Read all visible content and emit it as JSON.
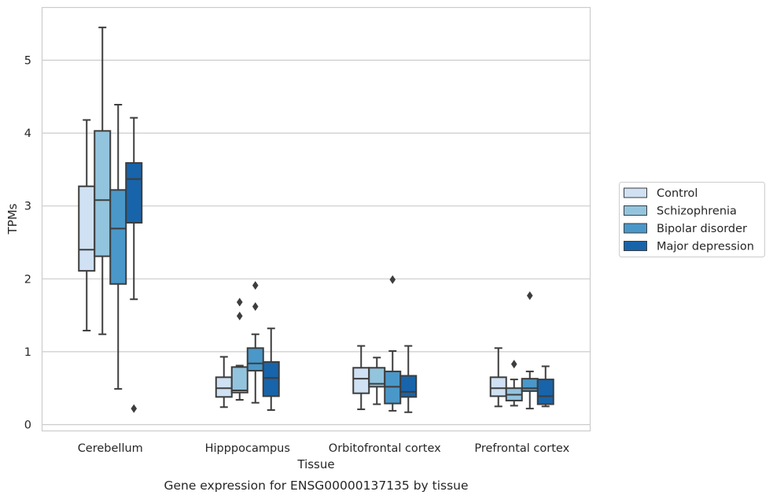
{
  "chart_data": {
    "type": "box",
    "caption": "Gene expression for ENSG00000137135 by tissue",
    "xlabel": "Tissue",
    "ylabel": "TPMs",
    "ylim": [
      -0.08,
      5.7
    ],
    "yticks": [
      0,
      1,
      2,
      3,
      4,
      5
    ],
    "grid": true,
    "legend_position": "right",
    "categories": [
      "Cerebellum",
      "Hipppocampus",
      "Orbitofrontal cortex",
      "Prefrontal cortex"
    ],
    "series": [
      {
        "name": "Control",
        "color": "#cfe1f2",
        "boxes": [
          {
            "min": 1.29,
            "q1": 2.11,
            "median": 2.4,
            "q3": 3.27,
            "max": 4.18,
            "outliers": []
          },
          {
            "min": 0.24,
            "q1": 0.38,
            "median": 0.5,
            "q3": 0.65,
            "max": 0.93,
            "outliers": []
          },
          {
            "min": 0.21,
            "q1": 0.43,
            "median": 0.63,
            "q3": 0.78,
            "max": 1.08,
            "outliers": []
          },
          {
            "min": 0.25,
            "q1": 0.39,
            "median": 0.5,
            "q3": 0.65,
            "max": 1.05,
            "outliers": []
          }
        ]
      },
      {
        "name": "Schizophrenia",
        "color": "#93c4de",
        "boxes": [
          {
            "min": 1.24,
            "q1": 2.31,
            "median": 3.08,
            "q3": 4.03,
            "max": 5.45,
            "outliers": []
          },
          {
            "min": 0.34,
            "q1": 0.44,
            "median": 0.47,
            "q3": 0.79,
            "max": 0.81,
            "outliers": [
              1.49,
              1.68
            ]
          },
          {
            "min": 0.28,
            "q1": 0.52,
            "median": 0.56,
            "q3": 0.78,
            "max": 0.92,
            "outliers": []
          },
          {
            "min": 0.26,
            "q1": 0.33,
            "median": 0.41,
            "q3": 0.5,
            "max": 0.62,
            "outliers": [
              0.83
            ]
          }
        ]
      },
      {
        "name": "Bipolar disorder",
        "color": "#4a98c9",
        "boxes": [
          {
            "min": 0.49,
            "q1": 1.93,
            "median": 2.69,
            "q3": 3.22,
            "max": 4.39,
            "outliers": []
          },
          {
            "min": 0.3,
            "q1": 0.74,
            "median": 0.84,
            "q3": 1.05,
            "max": 1.24,
            "outliers": [
              1.62,
              1.91
            ]
          },
          {
            "min": 0.19,
            "q1": 0.29,
            "median": 0.52,
            "q3": 0.73,
            "max": 1.01,
            "outliers": [
              1.99
            ]
          },
          {
            "min": 0.22,
            "q1": 0.46,
            "median": 0.5,
            "q3": 0.63,
            "max": 0.73,
            "outliers": [
              1.77
            ]
          }
        ]
      },
      {
        "name": "Major depression",
        "color": "#1764ab",
        "boxes": [
          {
            "min": 1.72,
            "q1": 2.77,
            "median": 3.37,
            "q3": 3.59,
            "max": 4.21,
            "outliers": [
              0.22
            ]
          },
          {
            "min": 0.2,
            "q1": 0.39,
            "median": 0.64,
            "q3": 0.86,
            "max": 1.32,
            "outliers": []
          },
          {
            "min": 0.17,
            "q1": 0.38,
            "median": 0.45,
            "q3": 0.67,
            "max": 1.08,
            "outliers": []
          },
          {
            "min": 0.25,
            "q1": 0.28,
            "median": 0.39,
            "q3": 0.62,
            "max": 0.8,
            "outliers": []
          }
        ]
      }
    ]
  }
}
